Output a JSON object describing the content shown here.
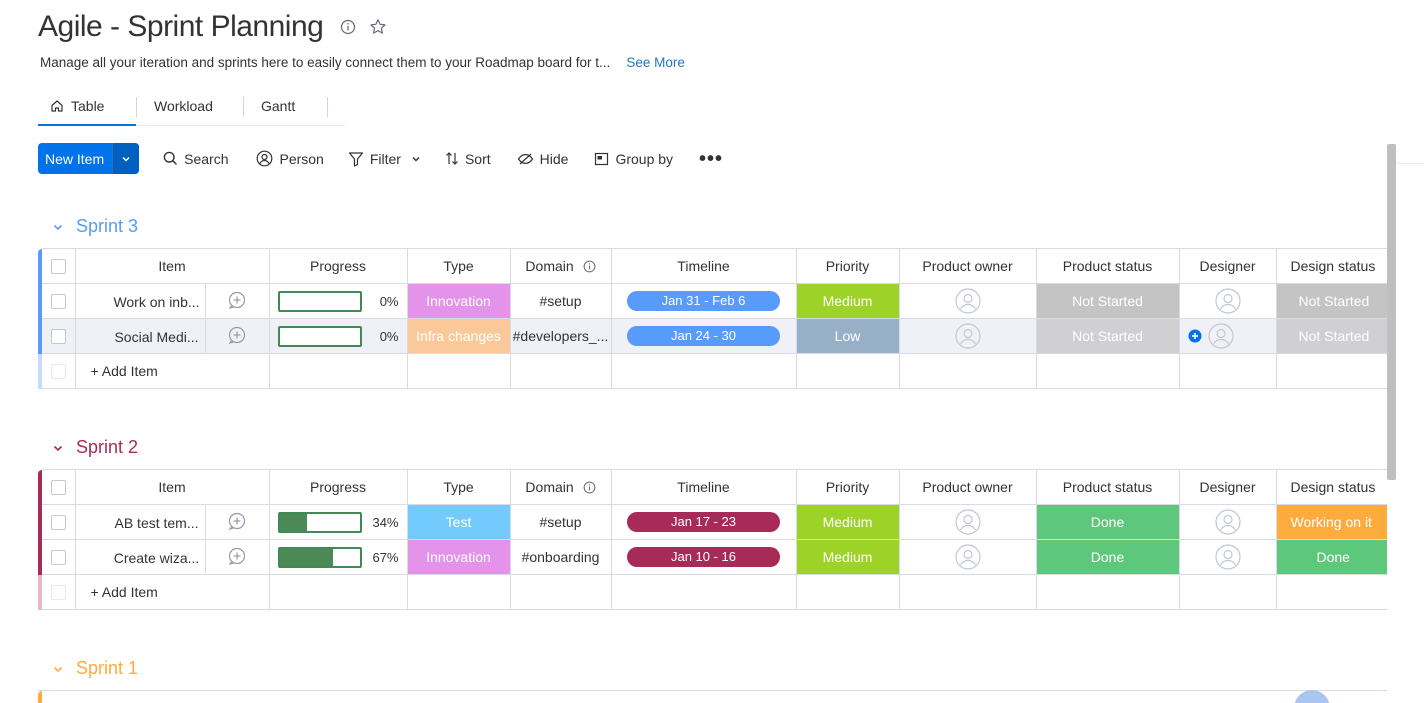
{
  "header": {
    "title": "Agile - Sprint Planning",
    "description": "Manage all your iteration and sprints here to easily connect them to your Roadmap board for t...",
    "see_more": "See More"
  },
  "tabs": [
    {
      "label": "Table",
      "active": true
    },
    {
      "label": "Workload",
      "active": false
    },
    {
      "label": "Gantt",
      "active": false
    }
  ],
  "toolbar": {
    "new_item": "New Item",
    "search": "Search",
    "person": "Person",
    "filter": "Filter",
    "sort": "Sort",
    "hide": "Hide",
    "group_by": "Group by",
    "more": "•••"
  },
  "columns": [
    "Item",
    "Progress",
    "Type",
    "Domain",
    "Timeline",
    "Priority",
    "Product owner",
    "Product status",
    "Designer",
    "Design status"
  ],
  "add_item_label": "+ Add Item",
  "colors": {
    "accent": "#0073ea",
    "sprint3": "#579bfc",
    "sprint2": "#a72b56",
    "sprint1": "#fdab3d",
    "innovation": "#e393e9",
    "infra": "#fbc899",
    "test": "#73cafc",
    "medium": "#9cd326",
    "low": "#97afc7",
    "not_started": "#c4c4c4",
    "done": "#5dc77b",
    "working": "#fdab3d",
    "timeline_blue": "#579bfc",
    "timeline_red": "#a72b56"
  },
  "groups": [
    {
      "name": "Sprint 3",
      "rows": [
        {
          "item": "Work on inb...",
          "progress": 0,
          "progress_label": "0%",
          "type": "Innovation",
          "domain": "#setup",
          "timeline": "Jan 31 - Feb 6",
          "priority": "Medium",
          "product_status": "Not Started",
          "design_status": "Not Started"
        },
        {
          "item": "Social Medi...",
          "progress": 0,
          "progress_label": "0%",
          "type": "Infra changes",
          "domain": "#developers_...",
          "timeline": "Jan 24 - 30",
          "priority": "Low",
          "product_status": "Not Started",
          "design_status": "Not Started"
        }
      ]
    },
    {
      "name": "Sprint 2",
      "rows": [
        {
          "item": "AB test tem...",
          "progress": 34,
          "progress_label": "34%",
          "type": "Test",
          "domain": "#setup",
          "timeline": "Jan 17 - 23",
          "priority": "Medium",
          "product_status": "Done",
          "design_status": "Working on it"
        },
        {
          "item": "Create wiza...",
          "progress": 67,
          "progress_label": "67%",
          "type": "Innovation",
          "domain": "#onboarding",
          "timeline": "Jan 10 - 16",
          "priority": "Medium",
          "product_status": "Done",
          "design_status": "Done"
        }
      ]
    },
    {
      "name": "Sprint 1",
      "rows": []
    }
  ]
}
